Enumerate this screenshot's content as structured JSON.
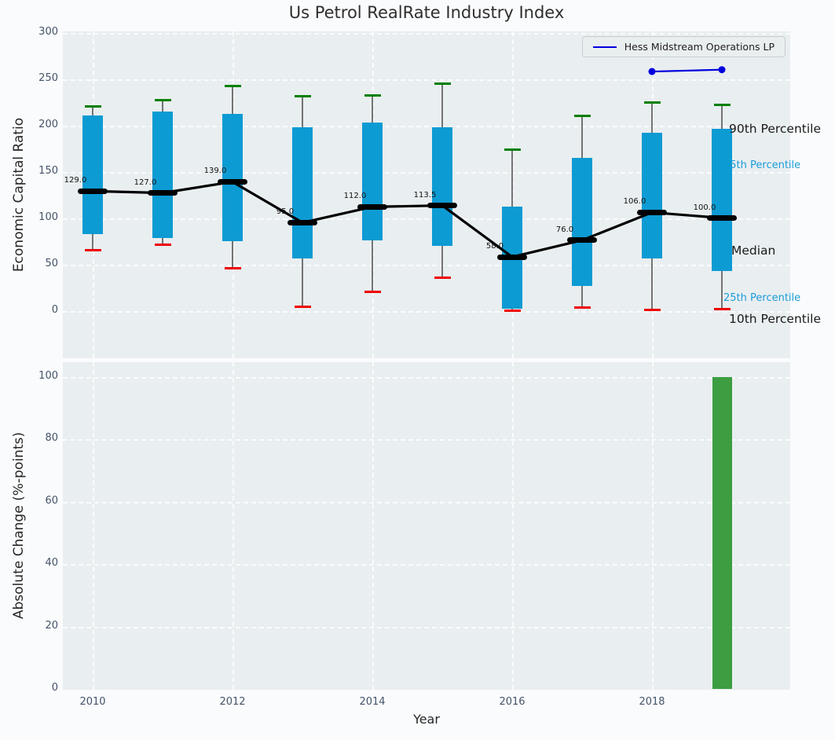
{
  "title": "Us Petrol RealRate Industry Index",
  "legend": {
    "label": "Hess Midstream Operations LP"
  },
  "annotations": {
    "p90": "90th Percentile",
    "p75": "75th Percentile",
    "median": "Median",
    "p25": "25th Percentile",
    "p10": "10th Percentile"
  },
  "colors": {
    "box": "#0d9bd3",
    "whisker": "#737373",
    "p90_cap": "#008000",
    "p10_cap": "#ee0000",
    "median_line": "#000000",
    "overlay_line": "#0000dd",
    "bar": "#3c9d41",
    "panel_bg": "#e9eef0",
    "annotation_cyan": "#1b9cd8"
  },
  "chart_data": [
    {
      "type": "boxplot+line",
      "title": "Us Petrol RealRate Industry Index",
      "ylabel": "Economic Capital Ratio",
      "years": [
        2010,
        2011,
        2012,
        2013,
        2014,
        2015,
        2016,
        2017,
        2018,
        2019
      ],
      "series": [
        {
          "name": "90th Percentile",
          "values": [
            220,
            227,
            242,
            231,
            232,
            245,
            174,
            210,
            225,
            222
          ]
        },
        {
          "name": "75th Percentile",
          "values": [
            211,
            215,
            212,
            198,
            203,
            198,
            112,
            165,
            192,
            196
          ]
        },
        {
          "name": "Median",
          "values": [
            129.0,
            127.0,
            139.0,
            95.0,
            112.0,
            113.5,
            58.0,
            76.0,
            106.0,
            100.0
          ]
        },
        {
          "name": "25th Percentile",
          "values": [
            83,
            78,
            75,
            56,
            76,
            70,
            2,
            27,
            56,
            43
          ]
        },
        {
          "name": "10th Percentile",
          "values": [
            65,
            71,
            46,
            4,
            20,
            36,
            0,
            3,
            1,
            2
          ]
        }
      ],
      "median_labels": [
        "129.0",
        "127.0",
        "139.0",
        "95.0",
        "112.0",
        "113.5",
        "58.0",
        "76.0",
        "106.0",
        "100.0"
      ],
      "overlay_line": {
        "name": "Hess Midstream Operations LP",
        "x": [
          2018,
          2019
        ],
        "y": [
          258,
          260
        ]
      },
      "yticks": [
        0,
        50,
        100,
        150,
        200,
        250,
        300
      ],
      "xticks": [
        2010,
        2012,
        2014,
        2016,
        2018
      ],
      "ylim": [
        -51,
        306
      ],
      "grid": "white dashed",
      "legend_position": "upper right"
    },
    {
      "type": "bar",
      "ylabel": "Absolute Change (%-points)",
      "xlabel": "Year",
      "categories": [
        2010,
        2011,
        2012,
        2013,
        2014,
        2015,
        2016,
        2017,
        2018,
        2019
      ],
      "values": [
        0,
        0,
        0,
        0,
        0,
        0,
        0,
        0,
        0,
        100
      ],
      "yticks": [
        0,
        20,
        40,
        60,
        80,
        100
      ],
      "xticks": [
        2010,
        2012,
        2014,
        2016,
        2018
      ],
      "ylim": [
        0,
        105
      ],
      "grid": "white dashed"
    }
  ]
}
